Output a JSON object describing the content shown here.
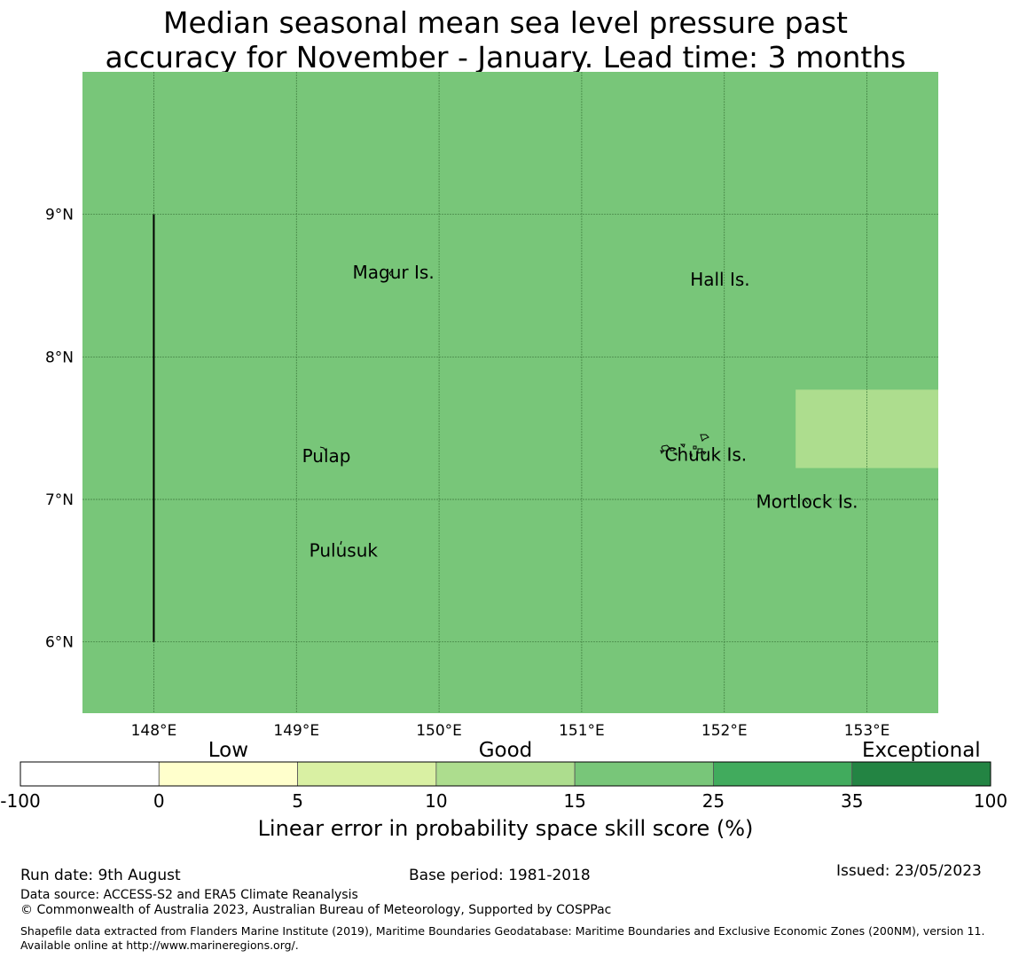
{
  "title": {
    "line1": "Median seasonal mean sea level pressure past",
    "line2": "accuracy for November - January. Lead time: 3 months"
  },
  "map": {
    "lon_range": [
      147.5,
      153.5
    ],
    "lat_range": [
      5.5,
      10.0
    ],
    "background_color": "#78c679",
    "grid": true,
    "lon_ticks": [
      {
        "value": 148,
        "label": "148°E"
      },
      {
        "value": 149,
        "label": "149°E"
      },
      {
        "value": 150,
        "label": "150°E"
      },
      {
        "value": 151,
        "label": "151°E"
      },
      {
        "value": 152,
        "label": "152°E"
      },
      {
        "value": 153,
        "label": "153°E"
      }
    ],
    "lat_ticks": [
      {
        "value": 9,
        "label": "9°N"
      },
      {
        "value": 8,
        "label": "8°N"
      },
      {
        "value": 7,
        "label": "7°N"
      },
      {
        "value": 6,
        "label": "6°N"
      }
    ],
    "cells": [
      {
        "lon_min": 152.5,
        "lon_max": 153.5,
        "lat_min": 7.22,
        "lat_max": 7.77,
        "color": "#addd8e",
        "category": "10-15"
      }
    ],
    "boundary_line": {
      "lon": 148.0,
      "lat_from": 6.0,
      "lat_to": 9.0
    },
    "places": [
      {
        "name": "Magur Is.",
        "lon": 149.68,
        "lat": 8.55
      },
      {
        "name": "Hall Is.",
        "lon": 151.97,
        "lat": 8.5
      },
      {
        "name": "Pulap",
        "lon": 149.21,
        "lat": 7.26
      },
      {
        "name": "Chuuk Is.",
        "lon": 151.87,
        "lat": 7.27
      },
      {
        "name": "Mortlock Is.",
        "lon": 152.58,
        "lat": 6.94
      },
      {
        "name": "Pulusuk",
        "lon": 149.33,
        "lat": 6.6
      }
    ]
  },
  "chart_data": {
    "type": "heatmap",
    "title": "Median seasonal mean sea level pressure past accuracy for November - January. Lead time: 3 months",
    "xlabel": "",
    "ylabel": "",
    "xlim": [
      147.5,
      153.5
    ],
    "ylim": [
      5.5,
      10.0
    ],
    "colorbar_label": "Linear error in probability space skill score (%)",
    "default_category": "15-25",
    "regions": [
      {
        "lon": [
          147.5,
          153.5
        ],
        "lat": [
          5.5,
          10.0
        ],
        "category": "15-25"
      },
      {
        "lon": [
          152.5,
          153.5
        ],
        "lat": [
          7.22,
          7.77
        ],
        "category": "10-15"
      }
    ]
  },
  "legend": {
    "categories": [
      {
        "label": "Low",
        "position_index": 1
      },
      {
        "label": "Good",
        "position_index": 3
      },
      {
        "label": "Exceptional",
        "position_index": 6
      }
    ],
    "boundaries": [
      "-100",
      "0",
      "5",
      "10",
      "15",
      "25",
      "35",
      "100"
    ],
    "colors": [
      "#ffffff",
      "#ffffcc",
      "#d9f0a3",
      "#addd8e",
      "#78c679",
      "#41ab5d",
      "#238443"
    ],
    "label": "Linear error in probability space skill score (%)"
  },
  "footer": {
    "run_date": "Run date: 9th August",
    "base_period": "Base period: 1981-2018",
    "issued": "Issued: 23/05/2023",
    "data_source": "Data source: ACCESS-S2 and ERA5 Climate Reanalysis",
    "copyright": "© Commonwealth of Australia 2023, Australian Bureau of Meteorology, Supported by COSPPac",
    "shapefile": "Shapefile data extracted from Flanders Marine Institute (2019), Maritime Boundaries Geodatabase: Maritime Boundaries and Exclusive Economic Zones (200NM), version 11. Available online at http://www.marineregions.org/."
  }
}
